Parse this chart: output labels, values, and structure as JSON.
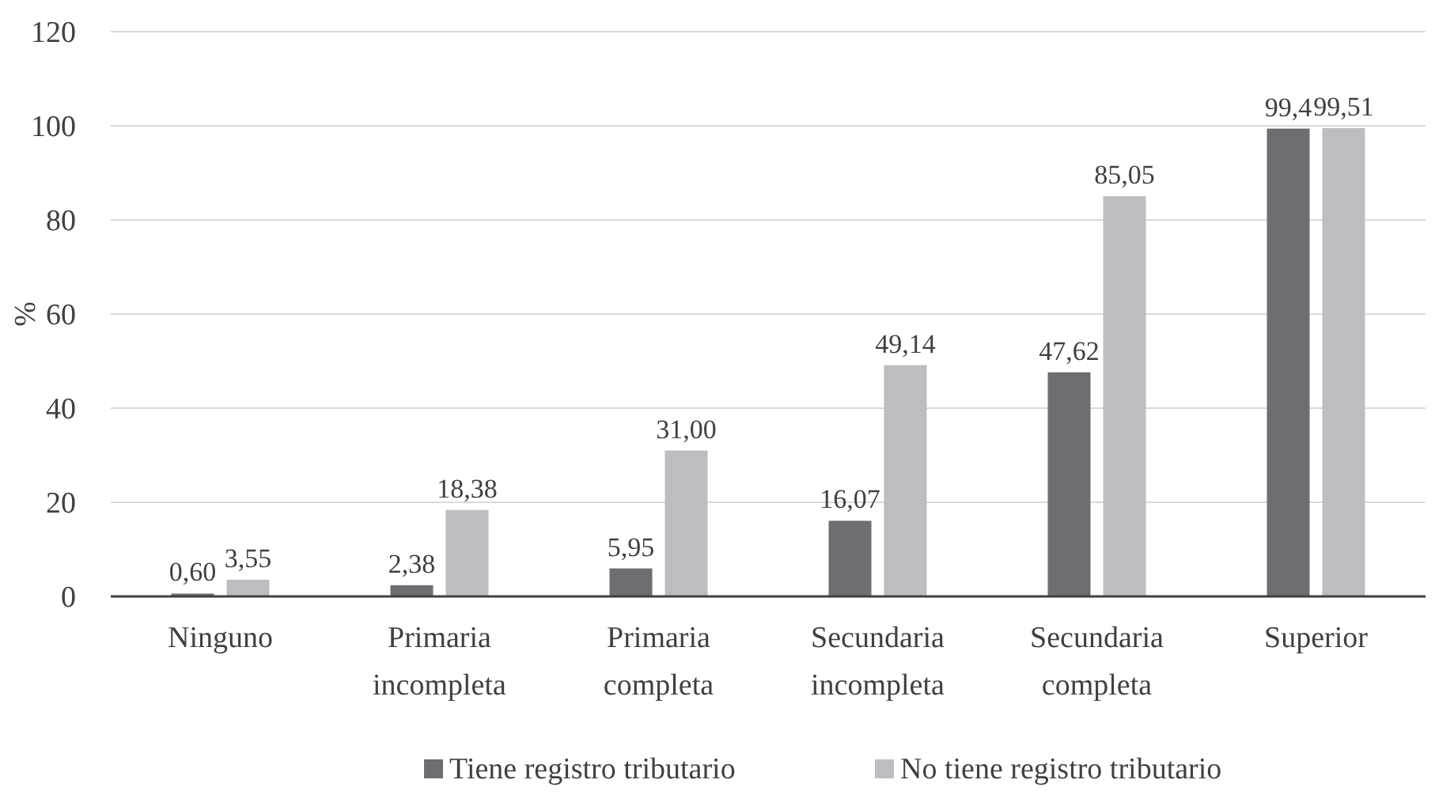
{
  "chart_data": {
    "type": "bar",
    "ylabel": "%",
    "categories": [
      "Ninguno",
      "Primaria incompleta",
      "Primaria completa",
      "Secundaria incompleta",
      "Secundaria completa",
      "Superior"
    ],
    "series": [
      {
        "name": "Tiene registro tributario",
        "color": "#6d6e71",
        "values": [
          0.6,
          2.38,
          5.95,
          16.07,
          47.62,
          99.4
        ],
        "value_labels": [
          "0,60",
          "2,38",
          "5,95",
          "16,07",
          "47,62",
          "99,4"
        ]
      },
      {
        "name": "No tiene registro tributario",
        "color": "#bcbdc0",
        "values": [
          3.55,
          18.38,
          31.0,
          49.14,
          85.05,
          99.51
        ],
        "value_labels": [
          "3,55",
          "18,38",
          "31,00",
          "49,14",
          "85,05",
          "99,51"
        ]
      }
    ],
    "ylim": [
      0,
      120
    ],
    "yticks": [
      0,
      20,
      40,
      60,
      80,
      100,
      120
    ],
    "grid": "y",
    "legend": "bottom"
  }
}
